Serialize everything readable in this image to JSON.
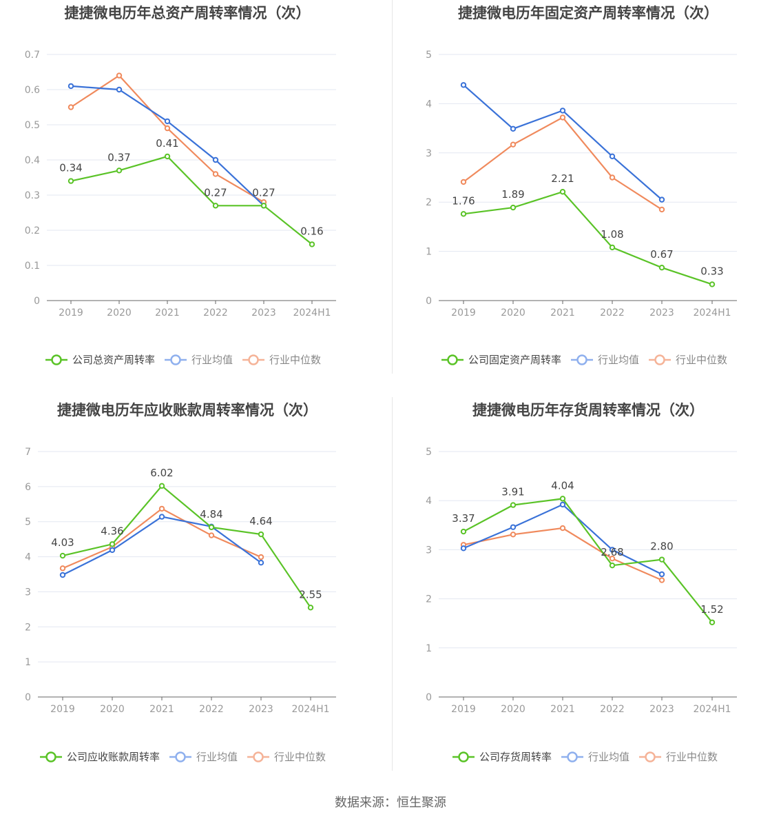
{
  "colors": {
    "company": "#5ac327",
    "avg": "#3a72d8",
    "median": "#f08a5d",
    "avg_legend": "#8fb0ee",
    "median_legend": "#f5b398",
    "grid": "#e3e7f1",
    "axis_text": "#999999",
    "label_text": "#444444",
    "title_text": "#444444"
  },
  "legend": {
    "avg": "行业均值",
    "median": "行业中位数"
  },
  "footer": "数据来源：恒生聚源",
  "chart_data": [
    {
      "type": "line",
      "title": "捷捷微电历年总资产周转率情况（次）",
      "categories": [
        "2019",
        "2020",
        "2021",
        "2022",
        "2023",
        "2024H1"
      ],
      "yticks": [
        "0",
        "0.1",
        "0.2",
        "0.3",
        "0.4",
        "0.5",
        "0.6",
        "0.7"
      ],
      "ylim": [
        0,
        0.7
      ],
      "series": [
        {
          "name": "公司总资产周转率",
          "key": "company",
          "values": [
            0.34,
            0.37,
            0.41,
            0.27,
            0.27,
            0.16
          ],
          "labels": [
            "0.34",
            "0.37",
            "0.41",
            "0.27",
            "0.27",
            "0.16"
          ]
        },
        {
          "name": "行业均值",
          "key": "avg",
          "values": [
            0.61,
            0.6,
            0.51,
            0.4,
            0.27,
            null
          ]
        },
        {
          "name": "行业中位数",
          "key": "median",
          "values": [
            0.55,
            0.64,
            0.49,
            0.36,
            0.28,
            null
          ]
        }
      ]
    },
    {
      "type": "line",
      "title": "捷捷微电历年固定资产周转率情况（次）",
      "categories": [
        "2019",
        "2020",
        "2021",
        "2022",
        "2023",
        "2024H1"
      ],
      "yticks": [
        "0",
        "1",
        "2",
        "3",
        "4",
        "5"
      ],
      "ylim": [
        0,
        5
      ],
      "series": [
        {
          "name": "公司固定资产周转率",
          "key": "company",
          "values": [
            1.76,
            1.89,
            2.21,
            1.08,
            0.67,
            0.33
          ],
          "labels": [
            "1.76",
            "1.89",
            "2.21",
            "1.08",
            "0.67",
            "0.33"
          ]
        },
        {
          "name": "行业均值",
          "key": "avg",
          "values": [
            4.38,
            3.49,
            3.86,
            2.93,
            2.05,
            null
          ]
        },
        {
          "name": "行业中位数",
          "key": "median",
          "values": [
            2.41,
            3.17,
            3.72,
            2.5,
            1.85,
            null
          ]
        }
      ]
    },
    {
      "type": "line",
      "title": "捷捷微电历年应收账款周转率情况（次）",
      "categories": [
        "2019",
        "2020",
        "2021",
        "2022",
        "2023",
        "2024H1"
      ],
      "yticks": [
        "0",
        "1",
        "2",
        "3",
        "4",
        "5",
        "6",
        "7"
      ],
      "ylim": [
        0,
        7
      ],
      "series": [
        {
          "name": "公司应收账款周转率",
          "key": "company",
          "values": [
            4.03,
            4.36,
            6.02,
            4.84,
            4.64,
            2.55
          ],
          "labels": [
            "4.03",
            "4.36",
            "6.02",
            "4.84",
            "4.64",
            "2.55"
          ]
        },
        {
          "name": "行业均值",
          "key": "avg",
          "values": [
            3.48,
            4.19,
            5.14,
            4.86,
            3.83,
            null
          ]
        },
        {
          "name": "行业中位数",
          "key": "median",
          "values": [
            3.67,
            4.28,
            5.37,
            4.61,
            3.99,
            null
          ]
        }
      ]
    },
    {
      "type": "line",
      "title": "捷捷微电历年存货周转率情况（次）",
      "categories": [
        "2019",
        "2020",
        "2021",
        "2022",
        "2023",
        "2024H1"
      ],
      "yticks": [
        "0",
        "1",
        "2",
        "3",
        "4",
        "5"
      ],
      "ylim": [
        0,
        5
      ],
      "series": [
        {
          "name": "公司存货周转率",
          "key": "company",
          "values": [
            3.37,
            3.91,
            4.04,
            2.68,
            2.8,
            1.52
          ],
          "labels": [
            "3.37",
            "3.91",
            "4.04",
            "2.68",
            "2.80",
            "1.52"
          ]
        },
        {
          "name": "行业均值",
          "key": "avg",
          "values": [
            3.03,
            3.46,
            3.92,
            3.0,
            2.5,
            null
          ]
        },
        {
          "name": "行业中位数",
          "key": "median",
          "values": [
            3.1,
            3.31,
            3.44,
            2.82,
            2.38,
            null
          ]
        }
      ]
    }
  ]
}
